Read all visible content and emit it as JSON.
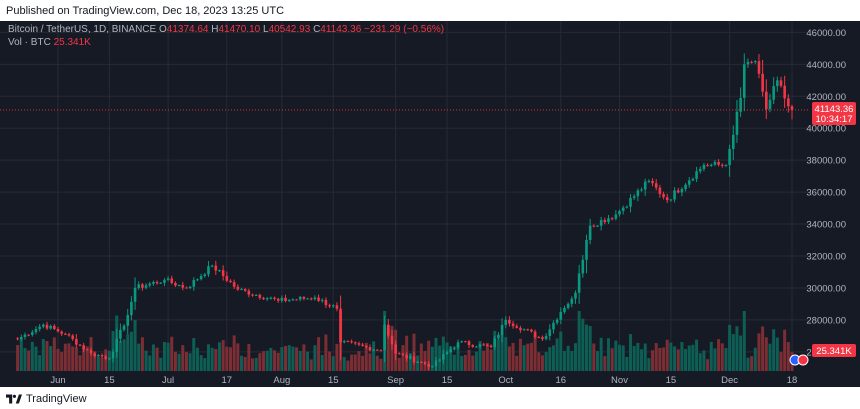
{
  "published": "Published on TradingView.com, Dec 18, 2023 13:25 UTC",
  "footer_brand": "TradingView",
  "legend": {
    "symbol": "Bitcoin / TetherUS, 1D, BINANCE",
    "open_label": "O",
    "open": "41374.64",
    "high_label": "H",
    "high": "41470.10",
    "low_label": "L",
    "low": "40542.93",
    "close_label": "C",
    "close": "41143.36",
    "change": "−231.29 (−0.56%)",
    "vol_label": "Vol · BTC",
    "vol_value": "25.341K"
  },
  "price_badge": {
    "price": "41143.36",
    "countdown": "10:34:17"
  },
  "volume_badge": "25.341K",
  "colors": {
    "background": "#161a25",
    "grid": "#262a35",
    "up": "#089981",
    "down": "#f23645",
    "up_volume": "#0d5f55",
    "down_volume": "#7c2e34",
    "axis_text": "#b2b5be"
  },
  "chart_data": {
    "type": "candlestick",
    "symbol": "BTC/USDT",
    "interval": "1D",
    "ylim": [
      24800,
      46400
    ],
    "y_ticks": [
      26000,
      28000,
      30000,
      32000,
      34000,
      36000,
      38000,
      40000,
      42000,
      44000,
      46000
    ],
    "x_ticks": [
      {
        "label": "Jun",
        "date": "2023-06-01"
      },
      {
        "label": "15",
        "date": "2023-06-15"
      },
      {
        "label": "Jul",
        "date": "2023-07-01"
      },
      {
        "label": "17",
        "date": "2023-07-17"
      },
      {
        "label": "Aug",
        "date": "2023-08-01"
      },
      {
        "label": "15",
        "date": "2023-08-15"
      },
      {
        "label": "Sep",
        "date": "2023-09-01"
      },
      {
        "label": "15",
        "date": "2023-09-15"
      },
      {
        "label": "Oct",
        "date": "2023-10-01"
      },
      {
        "label": "16",
        "date": "2023-10-16"
      },
      {
        "label": "Nov",
        "date": "2023-11-01"
      },
      {
        "label": "15",
        "date": "2023-11-15"
      },
      {
        "label": "Dec",
        "date": "2023-12-01"
      },
      {
        "label": "18",
        "date": "2023-12-18"
      }
    ],
    "anchor_points": [
      {
        "date": "2023-05-21",
        "close": 26800
      },
      {
        "date": "2023-05-28",
        "close": 27700
      },
      {
        "date": "2023-06-03",
        "close": 27100
      },
      {
        "date": "2023-06-10",
        "close": 25900
      },
      {
        "date": "2023-06-15",
        "close": 25600
      },
      {
        "date": "2023-06-20",
        "close": 28300
      },
      {
        "date": "2023-06-22",
        "close": 30000
      },
      {
        "date": "2023-06-30",
        "close": 30500
      },
      {
        "date": "2023-07-06",
        "close": 30000
      },
      {
        "date": "2023-07-13",
        "close": 31400
      },
      {
        "date": "2023-07-20",
        "close": 29900
      },
      {
        "date": "2023-07-31",
        "close": 29200
      },
      {
        "date": "2023-08-10",
        "close": 29400
      },
      {
        "date": "2023-08-16",
        "close": 28700
      },
      {
        "date": "2023-08-17",
        "close": 26600
      },
      {
        "date": "2023-08-28",
        "close": 26100
      },
      {
        "date": "2023-08-29",
        "close": 27700
      },
      {
        "date": "2023-09-01",
        "close": 25900
      },
      {
        "date": "2023-09-11",
        "close": 25100
      },
      {
        "date": "2023-09-18",
        "close": 26600
      },
      {
        "date": "2023-09-27",
        "close": 26300
      },
      {
        "date": "2023-10-01",
        "close": 28000
      },
      {
        "date": "2023-10-11",
        "close": 26800
      },
      {
        "date": "2023-10-16",
        "close": 28500
      },
      {
        "date": "2023-10-20",
        "close": 29700
      },
      {
        "date": "2023-10-23",
        "close": 33000
      },
      {
        "date": "2023-10-24",
        "close": 33900
      },
      {
        "date": "2023-10-31",
        "close": 34600
      },
      {
        "date": "2023-11-09",
        "close": 36700
      },
      {
        "date": "2023-11-14",
        "close": 35500
      },
      {
        "date": "2023-11-24",
        "close": 37700
      },
      {
        "date": "2023-11-30",
        "close": 37700
      },
      {
        "date": "2023-12-01",
        "close": 38700
      },
      {
        "date": "2023-12-04",
        "close": 41900
      },
      {
        "date": "2023-12-05",
        "close": 44000
      },
      {
        "date": "2023-12-08",
        "close": 44200
      },
      {
        "date": "2023-12-11",
        "close": 41200
      },
      {
        "date": "2023-12-14",
        "close": 43000
      },
      {
        "date": "2023-12-17",
        "close": 41374.64
      },
      {
        "date": "2023-12-18",
        "close": 41143.36
      }
    ],
    "last_candle": {
      "date": "2023-12-18",
      "open": 41374.64,
      "high": 41470.1,
      "low": 40542.93,
      "close": 41143.36
    }
  }
}
